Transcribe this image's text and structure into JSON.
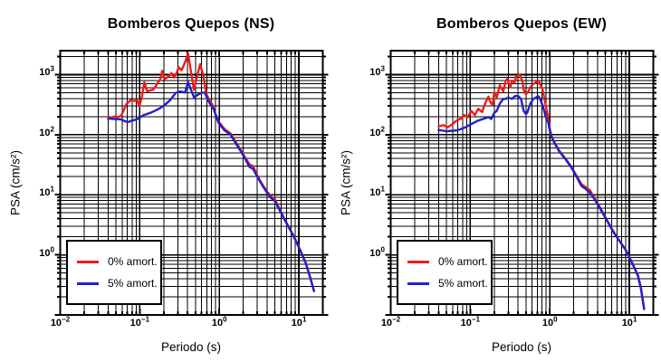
{
  "figure": {
    "background": "#ffffff"
  },
  "chart_data": [
    {
      "type": "line",
      "title": "Bomberos Quepos (NS)",
      "xlabel": "Periodo (s)",
      "ylabel": "PSA (cm/s²)",
      "x_scale": "log",
      "y_scale": "log",
      "x_range": [
        0.01,
        20
      ],
      "y_range": [
        0.1,
        2500
      ],
      "x_tick_exponents": [
        -2,
        -1,
        0,
        1
      ],
      "y_tick_exponents": [
        0,
        1,
        2,
        3
      ],
      "grid": "major-and-minor-log-grid",
      "legend_position": "lower-left",
      "series": [
        {
          "name": "0% amort.",
          "color": "#ee1a1a",
          "points": [
            [
              0.04,
              200
            ],
            [
              0.044,
              192
            ],
            [
              0.048,
              200
            ],
            [
              0.053,
              196
            ],
            [
              0.058,
              205
            ],
            [
              0.063,
              255
            ],
            [
              0.068,
              325
            ],
            [
              0.077,
              375
            ],
            [
              0.085,
              365
            ],
            [
              0.092,
              375
            ],
            [
              0.099,
              300
            ],
            [
              0.106,
              420
            ],
            [
              0.114,
              745
            ],
            [
              0.12,
              600
            ],
            [
              0.124,
              525
            ],
            [
              0.135,
              545
            ],
            [
              0.147,
              560
            ],
            [
              0.16,
              650
            ],
            [
              0.172,
              760
            ],
            [
              0.18,
              820
            ],
            [
              0.192,
              1150
            ],
            [
              0.205,
              840
            ],
            [
              0.22,
              890
            ],
            [
              0.235,
              960
            ],
            [
              0.25,
              1060
            ],
            [
              0.27,
              890
            ],
            [
              0.29,
              1060
            ],
            [
              0.31,
              1320
            ],
            [
              0.335,
              1180
            ],
            [
              0.37,
              1590
            ],
            [
              0.405,
              2230
            ],
            [
              0.44,
              1120
            ],
            [
              0.48,
              560
            ],
            [
              0.52,
              900
            ],
            [
              0.575,
              1490
            ],
            [
              0.63,
              940
            ],
            [
              0.69,
              470
            ],
            [
              0.75,
              375
            ],
            [
              0.82,
              315
            ],
            [
              0.9,
              215
            ],
            [
              0.98,
              167
            ],
            [
              1.08,
              140
            ],
            [
              1.16,
              125
            ],
            [
              1.38,
              105
            ],
            [
              1.65,
              72
            ],
            [
              1.95,
              50
            ],
            [
              2.15,
              40
            ],
            [
              2.4,
              32
            ],
            [
              2.65,
              30
            ],
            [
              3.0,
              21
            ],
            [
              3.45,
              15
            ],
            [
              3.95,
              11.5
            ],
            [
              4.4,
              9.6
            ],
            [
              5.0,
              8.4
            ],
            [
              5.55,
              6.3
            ],
            [
              6.5,
              4.1
            ],
            [
              7.6,
              2.8
            ],
            [
              8.9,
              1.9
            ],
            [
              10.4,
              1.2
            ],
            [
              12.2,
              0.74
            ],
            [
              13.9,
              0.42
            ],
            [
              15.5,
              0.25
            ]
          ]
        },
        {
          "name": "5% amort.",
          "color": "#2020cc",
          "points": [
            [
              0.04,
              186
            ],
            [
              0.048,
              182
            ],
            [
              0.058,
              180
            ],
            [
              0.065,
              168
            ],
            [
              0.072,
              163
            ],
            [
              0.08,
              172
            ],
            [
              0.092,
              180
            ],
            [
              0.102,
              195
            ],
            [
              0.11,
              210
            ],
            [
              0.125,
              222
            ],
            [
              0.14,
              235
            ],
            [
              0.16,
              255
            ],
            [
              0.184,
              280
            ],
            [
              0.21,
              320
            ],
            [
              0.24,
              375
            ],
            [
              0.285,
              500
            ],
            [
              0.325,
              525
            ],
            [
              0.37,
              500
            ],
            [
              0.405,
              745
            ],
            [
              0.44,
              560
            ],
            [
              0.48,
              420
            ],
            [
              0.55,
              470
            ],
            [
              0.6,
              500
            ],
            [
              0.66,
              500
            ],
            [
              0.72,
              375
            ],
            [
              0.78,
              315
            ],
            [
              0.85,
              265
            ],
            [
              0.98,
              157
            ],
            [
              1.16,
              118
            ],
            [
              1.38,
              100
            ],
            [
              1.65,
              68
            ],
            [
              1.95,
              48
            ],
            [
              2.15,
              38
            ],
            [
              2.4,
              29
            ],
            [
              2.65,
              27
            ],
            [
              3.0,
              20
            ],
            [
              3.45,
              14.5
            ],
            [
              3.95,
              11
            ],
            [
              4.4,
              9.0
            ],
            [
              5.0,
              7.8
            ],
            [
              5.55,
              6.0
            ],
            [
              6.5,
              4.0
            ],
            [
              7.6,
              2.75
            ],
            [
              8.9,
              1.85
            ],
            [
              10.4,
              1.18
            ],
            [
              12.2,
              0.73
            ],
            [
              13.9,
              0.42
            ],
            [
              15.5,
              0.25
            ]
          ]
        }
      ]
    },
    {
      "type": "line",
      "title": "Bomberos Quepos (EW)",
      "xlabel": "Periodo (s)",
      "ylabel": "PSA (cm/s²)",
      "x_scale": "log",
      "y_scale": "log",
      "x_range": [
        0.01,
        20
      ],
      "y_range": [
        0.1,
        2500
      ],
      "x_tick_exponents": [
        -2,
        -1,
        0,
        1
      ],
      "y_tick_exponents": [
        0,
        1,
        2,
        3
      ],
      "grid": "major-and-minor-log-grid",
      "legend_position": "lower-left",
      "series": [
        {
          "name": "0% amort.",
          "color": "#ee1a1a",
          "points": [
            [
              0.04,
              138
            ],
            [
              0.046,
              144
            ],
            [
              0.052,
              133
            ],
            [
              0.06,
              150
            ],
            [
              0.067,
              172
            ],
            [
              0.077,
              186
            ],
            [
              0.084,
              212
            ],
            [
              0.093,
              196
            ],
            [
              0.103,
              248
            ],
            [
              0.114,
              212
            ],
            [
              0.126,
              270
            ],
            [
              0.141,
              237
            ],
            [
              0.152,
              318
            ],
            [
              0.169,
              430
            ],
            [
              0.177,
              360
            ],
            [
              0.184,
              330
            ],
            [
              0.192,
              320
            ],
            [
              0.2,
              500
            ],
            [
              0.215,
              420
            ],
            [
              0.235,
              660
            ],
            [
              0.26,
              525
            ],
            [
              0.278,
              790
            ],
            [
              0.292,
              845
            ],
            [
              0.32,
              620
            ],
            [
              0.335,
              790
            ],
            [
              0.36,
              740
            ],
            [
              0.38,
              940
            ],
            [
              0.42,
              1000
            ],
            [
              0.455,
              745
            ],
            [
              0.47,
              560
            ],
            [
              0.5,
              470
            ],
            [
              0.54,
              525
            ],
            [
              0.57,
              620
            ],
            [
              0.62,
              700
            ],
            [
              0.68,
              750
            ],
            [
              0.71,
              790
            ],
            [
              0.74,
              745
            ],
            [
              0.77,
              660
            ],
            [
              0.81,
              560
            ],
            [
              0.84,
              440
            ],
            [
              0.88,
              330
            ],
            [
              0.92,
              247
            ],
            [
              0.96,
              185
            ],
            [
              1.0,
              125
            ],
            [
              1.05,
              95
            ],
            [
              1.15,
              74
            ],
            [
              1.3,
              55
            ],
            [
              1.55,
              41
            ],
            [
              1.85,
              29.5
            ],
            [
              2.2,
              20
            ],
            [
              2.5,
              15
            ],
            [
              2.8,
              13.5
            ],
            [
              3.2,
              11.8
            ],
            [
              3.7,
              8.5
            ],
            [
              4.45,
              5.6
            ],
            [
              5.3,
              3.7
            ],
            [
              6.3,
              2.45
            ],
            [
              7.5,
              1.72
            ],
            [
              9.0,
              1.22
            ],
            [
              10.7,
              0.77
            ],
            [
              12.8,
              0.46
            ],
            [
              14.0,
              0.28
            ],
            [
              15.3,
              0.13
            ]
          ]
        },
        {
          "name": "5% amort.",
          "color": "#2020cc",
          "points": [
            [
              0.04,
              120
            ],
            [
              0.05,
              114
            ],
            [
              0.06,
              116
            ],
            [
              0.07,
              119
            ],
            [
              0.084,
              130
            ],
            [
              0.103,
              150
            ],
            [
              0.126,
              172
            ],
            [
              0.152,
              186
            ],
            [
              0.169,
              196
            ],
            [
              0.184,
              182
            ],
            [
              0.2,
              230
            ],
            [
              0.215,
              248
            ],
            [
              0.235,
              330
            ],
            [
              0.26,
              394
            ],
            [
              0.28,
              394
            ],
            [
              0.3,
              417
            ],
            [
              0.335,
              394
            ],
            [
              0.365,
              440
            ],
            [
              0.4,
              440
            ],
            [
              0.435,
              394
            ],
            [
              0.47,
              247
            ],
            [
              0.5,
              220
            ],
            [
              0.52,
              233
            ],
            [
              0.57,
              330
            ],
            [
              0.62,
              394
            ],
            [
              0.68,
              420
            ],
            [
              0.71,
              440
            ],
            [
              0.74,
              417
            ],
            [
              0.77,
              370
            ],
            [
              0.81,
              310
            ],
            [
              0.84,
              262
            ],
            [
              0.88,
              208
            ],
            [
              0.92,
              175
            ],
            [
              0.96,
              158
            ],
            [
              1.0,
              115
            ],
            [
              1.05,
              92
            ],
            [
              1.15,
              72
            ],
            [
              1.3,
              54
            ],
            [
              1.55,
              40
            ],
            [
              1.85,
              29
            ],
            [
              2.2,
              19.3
            ],
            [
              2.5,
              14
            ],
            [
              2.8,
              12.6
            ],
            [
              3.2,
              10.8
            ],
            [
              3.7,
              8.2
            ],
            [
              4.45,
              5.4
            ],
            [
              5.3,
              3.6
            ],
            [
              6.3,
              2.4
            ],
            [
              7.5,
              1.7
            ],
            [
              9.0,
              1.2
            ],
            [
              10.7,
              0.76
            ],
            [
              12.8,
              0.45
            ],
            [
              14.0,
              0.27
            ],
            [
              15.3,
              0.125
            ]
          ]
        }
      ]
    }
  ]
}
